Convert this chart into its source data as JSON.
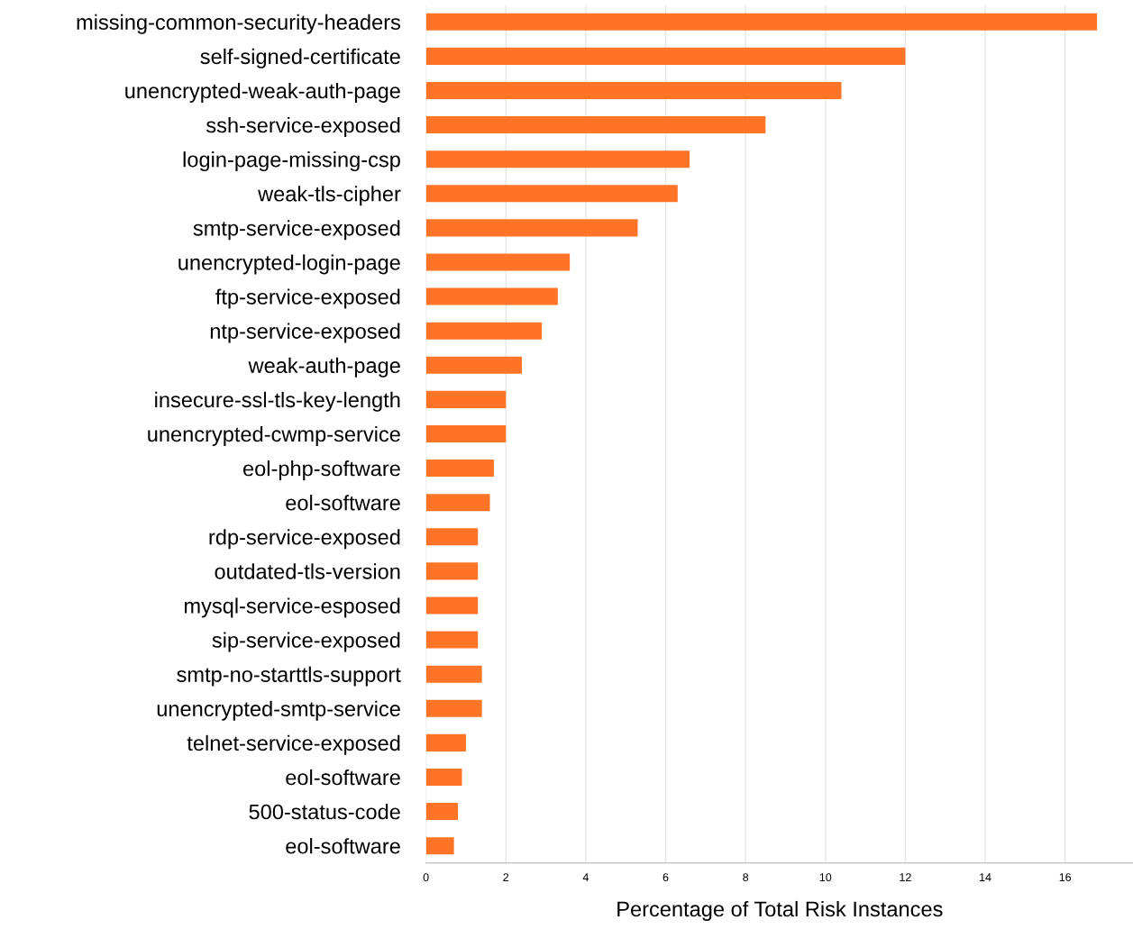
{
  "chart_data": {
    "type": "bar",
    "orientation": "horizontal",
    "xlabel": "Percentage of Total Risk Instances",
    "categories": [
      "missing-common-security-headers",
      "self-signed-certificate",
      "unencrypted-weak-auth-page",
      "ssh-service-exposed",
      "login-page-missing-csp",
      "weak-tls-cipher",
      "smtp-service-exposed",
      "unencrypted-login-page",
      "ftp-service-exposed",
      "ntp-service-exposed",
      "weak-auth-page",
      "insecure-ssl-tls-key-length",
      "unencrypted-cwmp-service",
      "eol-php-software",
      "eol-software",
      "rdp-service-exposed",
      "outdated-tls-version",
      "mysql-service-esposed",
      "sip-service-exposed",
      "smtp-no-starttls-support",
      "unencrypted-smtp-service",
      "telnet-service-exposed",
      "eol-software",
      "500-status-code",
      "eol-software"
    ],
    "values": [
      16.8,
      12.0,
      10.4,
      8.5,
      6.6,
      6.3,
      5.3,
      3.6,
      3.3,
      2.9,
      2.4,
      2.0,
      2.0,
      1.7,
      1.6,
      1.3,
      1.3,
      1.3,
      1.3,
      1.4,
      1.4,
      1.0,
      0.9,
      0.8,
      0.7
    ],
    "color": "#ff7426",
    "xlim": [
      0,
      17.7
    ],
    "xticks": [
      0,
      2,
      4,
      6,
      8,
      10,
      12,
      14,
      16
    ],
    "grid": "x"
  }
}
